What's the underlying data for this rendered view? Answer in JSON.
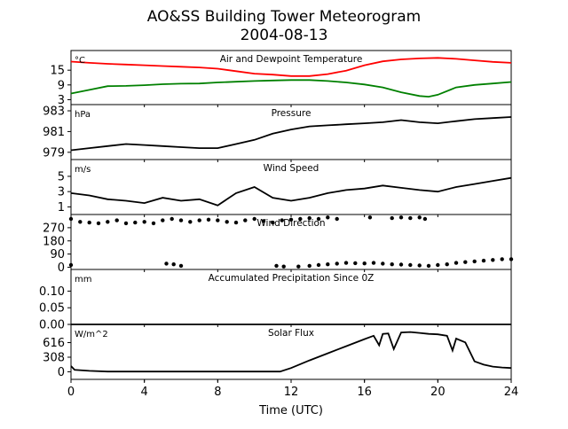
{
  "title_line1": "AO&SS Building Tower Meteorogram",
  "title_line2": "2004-08-13",
  "xlabel": "Time (UTC)",
  "x_ticks": [
    "0",
    "4",
    "8",
    "12",
    "16",
    "20",
    "24"
  ],
  "chart_data": [
    {
      "type": "line",
      "title": "Air and Dewpoint Temperature",
      "unit": "°C",
      "y_ticks": [
        "15",
        "9",
        "3"
      ],
      "ylim": [
        1,
        23
      ],
      "xlim": [
        0,
        24
      ],
      "series": [
        {
          "color": "#ff0000",
          "x": [
            0,
            1,
            2,
            3,
            4,
            5,
            6,
            7,
            8,
            9,
            10,
            11,
            12,
            13,
            14,
            15,
            16,
            17,
            18,
            19,
            20,
            21,
            22,
            23,
            24
          ],
          "y": [
            18.5,
            18.0,
            17.6,
            17.3,
            17.0,
            16.7,
            16.4,
            16.1,
            15.6,
            14.6,
            13.6,
            13.2,
            12.6,
            12.6,
            13.4,
            14.8,
            17.0,
            18.6,
            19.4,
            19.8,
            20.0,
            19.6,
            19.0,
            18.4,
            18.0
          ]
        },
        {
          "color": "#008000",
          "x": [
            0,
            1,
            2,
            3,
            4,
            5,
            6,
            7,
            8,
            9,
            10,
            11,
            12,
            13,
            14,
            15,
            16,
            17,
            18,
            19,
            19.5,
            20,
            21,
            22,
            23,
            24
          ],
          "y": [
            5.5,
            7.0,
            8.5,
            8.6,
            8.9,
            9.3,
            9.5,
            9.6,
            10.0,
            10.3,
            10.6,
            10.8,
            11.0,
            11.0,
            10.6,
            10.0,
            9.2,
            8.0,
            6.0,
            4.5,
            4.2,
            5.0,
            8.0,
            9.0,
            9.6,
            10.2
          ]
        }
      ]
    },
    {
      "type": "line",
      "title": "Pressure",
      "unit": "hPa",
      "y_ticks": [
        "983",
        "981",
        "979"
      ],
      "ylim": [
        978.3,
        983.6
      ],
      "xlim": [
        0,
        24
      ],
      "series": [
        {
          "color": "#000000",
          "x": [
            0,
            1,
            2,
            3,
            4,
            5,
            6,
            7,
            8,
            9,
            10,
            11,
            12,
            13,
            14,
            15,
            16,
            17,
            18,
            19,
            20,
            21,
            22,
            23,
            24
          ],
          "y": [
            979.2,
            979.4,
            979.6,
            979.8,
            979.7,
            979.6,
            979.5,
            979.4,
            979.4,
            979.8,
            980.2,
            980.8,
            981.2,
            981.5,
            981.6,
            981.7,
            981.8,
            981.9,
            982.1,
            981.9,
            981.8,
            982.0,
            982.2,
            982.3,
            982.4
          ]
        }
      ]
    },
    {
      "type": "line",
      "title": "Wind Speed",
      "unit": "m/s",
      "y_ticks": [
        "5",
        "3",
        "1"
      ],
      "ylim": [
        0,
        7.2
      ],
      "xlim": [
        0,
        24
      ],
      "series": [
        {
          "color": "#000000",
          "x": [
            0,
            1,
            2,
            3,
            4,
            5,
            6,
            7,
            8,
            8.5,
            9,
            10,
            11,
            12,
            13,
            14,
            15,
            16,
            17,
            18,
            19,
            20,
            21,
            22,
            23,
            24
          ],
          "y": [
            2.8,
            2.5,
            2.0,
            1.8,
            1.5,
            2.2,
            1.8,
            2.0,
            1.2,
            2.0,
            2.8,
            3.6,
            2.2,
            1.8,
            2.2,
            2.8,
            3.2,
            3.4,
            3.8,
            3.5,
            3.2,
            3.0,
            3.6,
            4.0,
            4.4,
            4.8
          ]
        }
      ]
    },
    {
      "type": "scatter",
      "title": "Wind Direction",
      "unit": "",
      "y_ticks": [
        "270",
        "180",
        "90",
        "0"
      ],
      "ylim": [
        -15,
        360
      ],
      "xlim": [
        0,
        24
      ],
      "series": [
        {
          "color": "#000000",
          "x": [
            0,
            0.5,
            1,
            1.5,
            2,
            2.5,
            3,
            3.5,
            4,
            4.5,
            5,
            5.5,
            6,
            6.5,
            7,
            7.5,
            8,
            8.5,
            9,
            9.5,
            10,
            10.5,
            11,
            11.5,
            12,
            12.5,
            13,
            13.5,
            14,
            14.5,
            16.3,
            17.5,
            18,
            18.5,
            19,
            19.3,
            0,
            5.2,
            5.6,
            6.0,
            11.2,
            11.6,
            12.4,
            13.0,
            13.5,
            14,
            14.5,
            15,
            15.5,
            16,
            16.5,
            17,
            17.5,
            18,
            18.5,
            19,
            19.5,
            20,
            20.5,
            21,
            21.5,
            22,
            22.5,
            23,
            23.5,
            24
          ],
          "y": [
            330,
            310,
            305,
            300,
            310,
            320,
            300,
            305,
            310,
            300,
            320,
            330,
            320,
            310,
            320,
            325,
            320,
            310,
            305,
            320,
            330,
            315,
            305,
            320,
            325,
            330,
            335,
            330,
            340,
            330,
            340,
            335,
            340,
            335,
            340,
            330,
            15,
            25,
            20,
            10,
            10,
            5,
            5,
            10,
            15,
            20,
            25,
            30,
            28,
            26,
            30,
            25,
            20,
            18,
            15,
            12,
            10,
            15,
            20,
            30,
            35,
            40,
            45,
            50,
            55,
            55
          ]
        }
      ]
    },
    {
      "type": "line",
      "title": "Accumulated Precipitation Since 0Z",
      "unit": "mm",
      "y_ticks": [
        "0.10",
        "0.05",
        "0.00"
      ],
      "ylim": [
        0,
        0.165
      ],
      "xlim": [
        0,
        24
      ],
      "series": [
        {
          "color": "#000000",
          "x": [
            0,
            24
          ],
          "y": [
            0,
            0
          ]
        }
      ]
    },
    {
      "type": "line",
      "title": "Solar Flux",
      "unit": "W/m^2",
      "y_ticks": [
        "616",
        "308",
        "0"
      ],
      "ylim": [
        -160,
        1000
      ],
      "xlim": [
        0,
        24
      ],
      "series": [
        {
          "color": "#000000",
          "x": [
            0,
            0.2,
            1,
            2,
            4,
            6,
            8,
            10,
            11.4,
            12,
            13,
            14,
            15,
            16,
            16.5,
            16.8,
            17,
            17.3,
            17.6,
            18,
            18.5,
            19,
            19.5,
            20,
            20.5,
            20.8,
            21,
            21.5,
            22,
            22.5,
            23,
            23.5,
            24
          ],
          "y": [
            120,
            40,
            20,
            5,
            5,
            5,
            5,
            5,
            5,
            80,
            240,
            390,
            540,
            690,
            760,
            560,
            800,
            810,
            480,
            830,
            840,
            820,
            800,
            790,
            760,
            450,
            700,
            620,
            220,
            150,
            110,
            90,
            80
          ]
        }
      ]
    }
  ]
}
